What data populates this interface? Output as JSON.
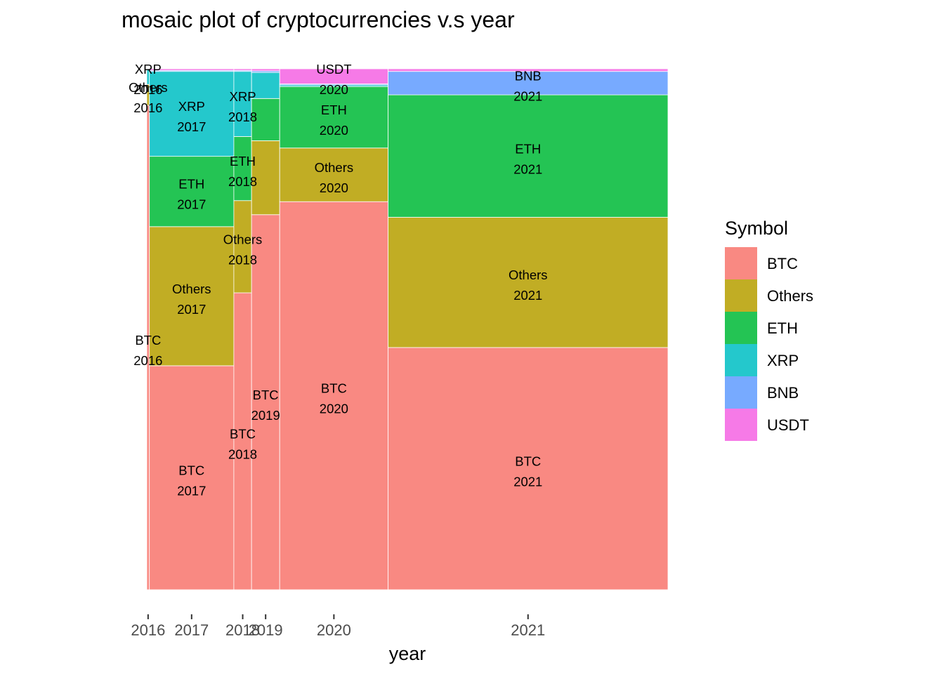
{
  "chart_data": {
    "type": "mosaic",
    "title": "mosaic plot of cryptocurrencies v.s year",
    "xlabel": "year",
    "ylabel": "",
    "legend": {
      "title": "Symbol",
      "position": "right",
      "entries": [
        "BTC",
        "Others",
        "ETH",
        "XRP",
        "BNB",
        "USDT"
      ]
    },
    "colors": {
      "BTC": "#F8766D",
      "Others": "#B79F00",
      "ETH": "#00BA38",
      "XRP": "#00BFC4",
      "BNB": "#619CFF",
      "USDT": "#F564E3"
    },
    "grid": false,
    "columns": [
      {
        "year": "2016",
        "width_share": 0.005,
        "segments": [
          {
            "symbol": "BTC",
            "share": 0.93
          },
          {
            "symbol": "Others",
            "share": 0.04
          },
          {
            "symbol": "XRP",
            "share": 0.03
          }
        ]
      },
      {
        "year": "2017",
        "width_share": 0.162,
        "segments": [
          {
            "symbol": "BTC",
            "share": 0.43
          },
          {
            "symbol": "Others",
            "share": 0.267
          },
          {
            "symbol": "ETH",
            "share": 0.135
          },
          {
            "symbol": "XRP",
            "share": 0.163
          },
          {
            "symbol": "BNB",
            "share": 0.002
          },
          {
            "symbol": "USDT",
            "share": 0.003
          }
        ]
      },
      {
        "year": "2018",
        "width_share": 0.034,
        "segments": [
          {
            "symbol": "BTC",
            "share": 0.57
          },
          {
            "symbol": "Others",
            "share": 0.177
          },
          {
            "symbol": "ETH",
            "share": 0.123
          },
          {
            "symbol": "XRP",
            "share": 0.125
          },
          {
            "symbol": "BNB",
            "share": 0.002
          },
          {
            "symbol": "USDT",
            "share": 0.003
          }
        ]
      },
      {
        "year": "2019",
        "width_share": 0.054,
        "segments": [
          {
            "symbol": "BTC",
            "share": 0.72
          },
          {
            "symbol": "Others",
            "share": 0.142
          },
          {
            "symbol": "ETH",
            "share": 0.081
          },
          {
            "symbol": "XRP",
            "share": 0.05
          },
          {
            "symbol": "BNB",
            "share": 0.003
          },
          {
            "symbol": "USDT",
            "share": 0.004
          }
        ]
      },
      {
        "year": "2020",
        "width_share": 0.208,
        "segments": [
          {
            "symbol": "BTC",
            "share": 0.745
          },
          {
            "symbol": "Others",
            "share": 0.103
          },
          {
            "symbol": "ETH",
            "share": 0.118
          },
          {
            "symbol": "XRP",
            "share": 0.003
          },
          {
            "symbol": "BNB",
            "share": 0.002
          },
          {
            "symbol": "USDT",
            "share": 0.029
          }
        ]
      },
      {
        "year": "2021",
        "width_share": 0.537,
        "segments": [
          {
            "symbol": "BTC",
            "share": 0.465
          },
          {
            "symbol": "Others",
            "share": 0.25
          },
          {
            "symbol": "ETH",
            "share": 0.235
          },
          {
            "symbol": "XRP",
            "share": 0.0
          },
          {
            "symbol": "BNB",
            "share": 0.045
          },
          {
            "symbol": "USDT",
            "share": 0.005
          }
        ]
      }
    ],
    "segment_labels": [
      {
        "year": "2016",
        "symbol": "BTC"
      },
      {
        "year": "2016",
        "symbol": "Others"
      },
      {
        "year": "2016",
        "symbol": "XRP"
      },
      {
        "year": "2017",
        "symbol": "BTC"
      },
      {
        "year": "2017",
        "symbol": "Others"
      },
      {
        "year": "2017",
        "symbol": "ETH"
      },
      {
        "year": "2017",
        "symbol": "XRP"
      },
      {
        "year": "2018",
        "symbol": "BTC"
      },
      {
        "year": "2018",
        "symbol": "Others"
      },
      {
        "year": "2018",
        "symbol": "ETH"
      },
      {
        "year": "2018",
        "symbol": "XRP"
      },
      {
        "year": "2019",
        "symbol": "BTC"
      },
      {
        "year": "2020",
        "symbol": "BTC"
      },
      {
        "year": "2020",
        "symbol": "Others"
      },
      {
        "year": "2020",
        "symbol": "ETH"
      },
      {
        "year": "2020",
        "symbol": "USDT"
      },
      {
        "year": "2021",
        "symbol": "BTC"
      },
      {
        "year": "2021",
        "symbol": "Others"
      },
      {
        "year": "2021",
        "symbol": "ETH"
      },
      {
        "year": "2021",
        "symbol": "BNB"
      }
    ]
  }
}
